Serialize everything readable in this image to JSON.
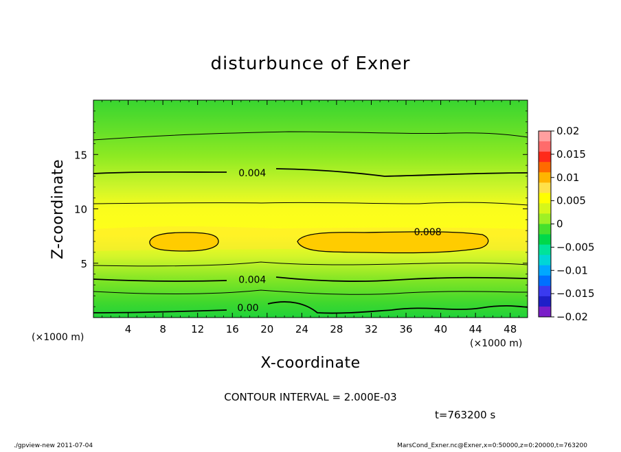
{
  "chart_data": {
    "type": "heatmap",
    "title": "disturbunce of Exner",
    "xlabel": "X-coordinate",
    "ylabel": "Z-coordinate",
    "x_unit_left": "(×1000 m)",
    "x_unit_right": "(×1000 m)",
    "xlim": [
      0,
      50
    ],
    "ylim": [
      0,
      20
    ],
    "x_ticks": [
      4,
      8,
      12,
      16,
      20,
      24,
      28,
      32,
      36,
      40,
      44,
      48
    ],
    "y_ticks": [
      5,
      10,
      15
    ],
    "contour_labels": [
      {
        "text": "0.004",
        "x": 18.3,
        "z": 13.3
      },
      {
        "text": "0.008",
        "x": 38.5,
        "z": 7.9
      },
      {
        "text": "0.004",
        "x": 18.3,
        "z": 3.5
      },
      {
        "text": "0.00",
        "x": 17.8,
        "z": 0.9
      }
    ],
    "colorbar": {
      "ticks": [
        "0.02",
        "0.015",
        "0.01",
        "0.005",
        "0",
        "−0.005",
        "−0.01",
        "−0.015",
        "−0.02"
      ],
      "colors": [
        "#ff9f9f",
        "#ff6b6b",
        "#ff2a1a",
        "#ff6a00",
        "#ffb400",
        "#ffe14a",
        "#ffff00",
        "#d6f71a",
        "#9ef025",
        "#46e02d",
        "#00d84a",
        "#00e39a",
        "#00d6d6",
        "#00a8ff",
        "#006fff",
        "#3a3af0",
        "#1f1fc8",
        "#7a1fc8"
      ]
    }
  },
  "annotations": {
    "contour_interval": "CONTOUR INTERVAL = 2.000E-03",
    "time": "t=763200 s",
    "footer_left": "./gpview-new   2011-07-04",
    "footer_right": "MarsCond_Exner.nc@Exner,x=0:50000,z=0:20000,t=763200"
  }
}
